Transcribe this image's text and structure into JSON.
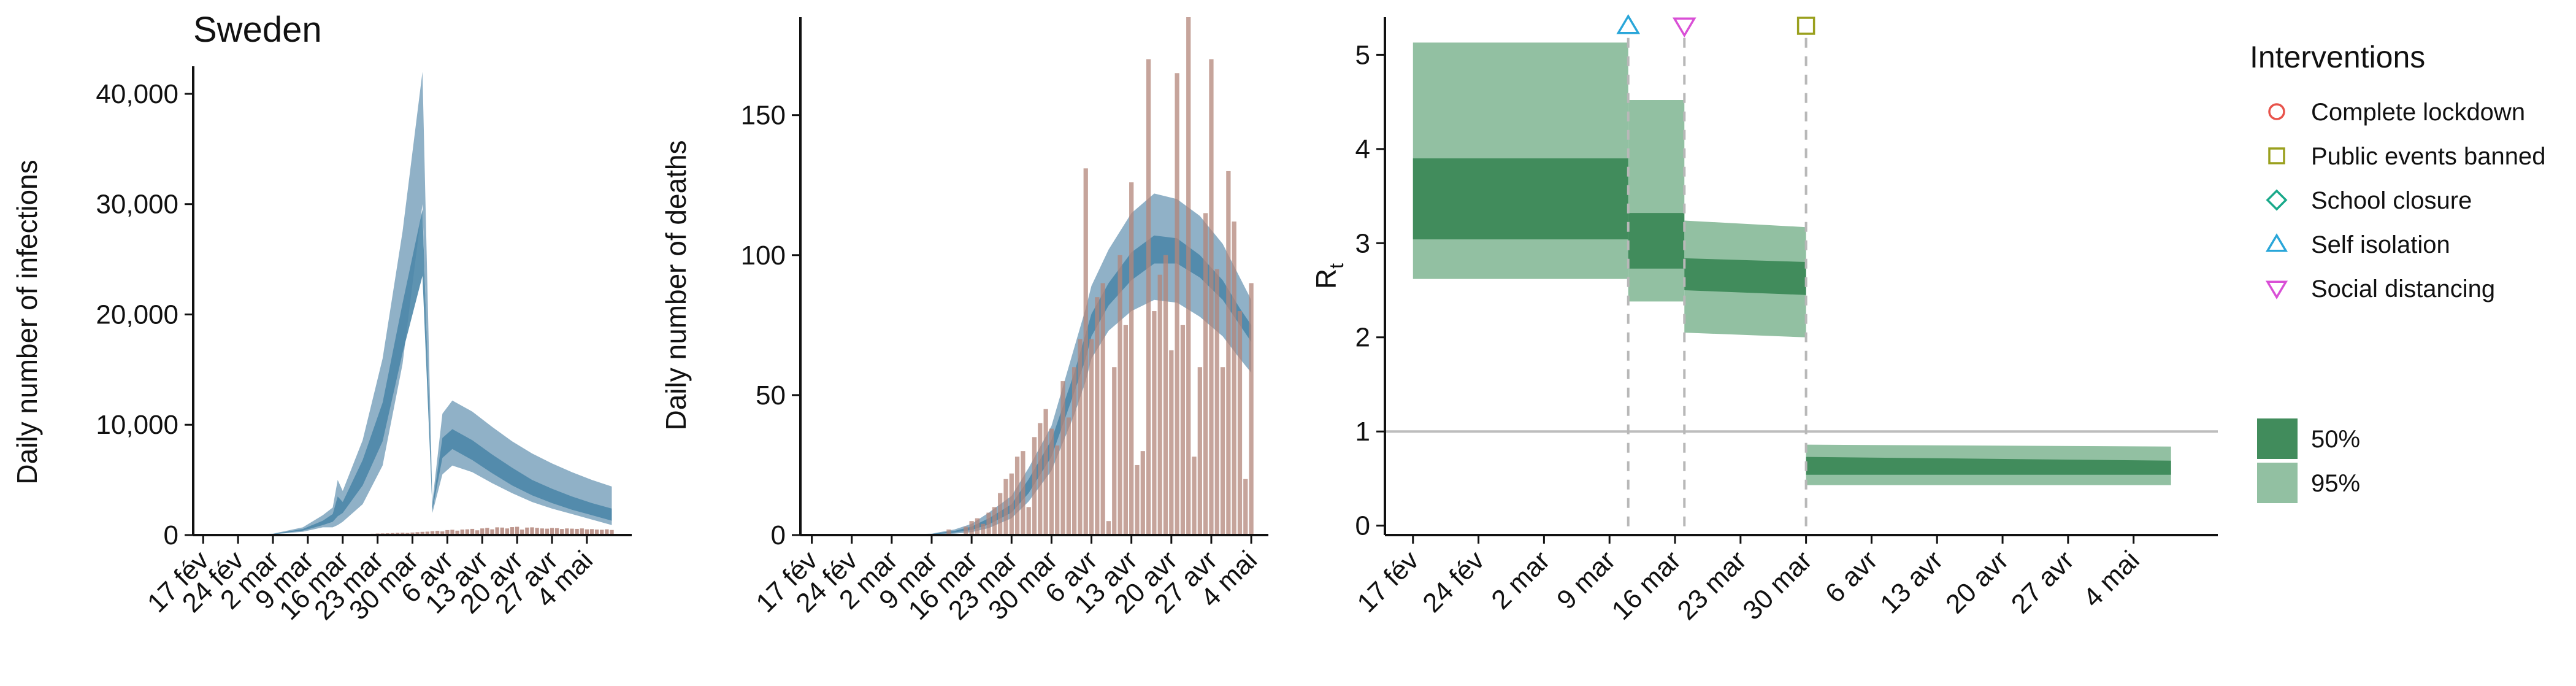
{
  "figure": {
    "colors": {
      "infections_band95": "#8aadc4",
      "infections_band50": "#4d87a8",
      "deaths_band95": "#8aadc4",
      "deaths_band50": "#4d87a8",
      "observed_bars": "#b3857a",
      "rt_band95": "#92c0a2",
      "rt_band50": "#418c5c",
      "marker_complete_lockdown": "#e8534b",
      "marker_public_events_banned": "#9aa01e",
      "marker_school_closure": "#19a98a",
      "marker_self_isolation": "#29a6d9",
      "marker_social_distancing": "#d94fd6"
    }
  },
  "chart_data": [
    {
      "type": "area",
      "title": "Sweden",
      "xlabel": "",
      "ylabel": "Daily number of infections",
      "x_ticks": [
        "17 fév",
        "24 fév",
        "2 mar",
        "9 mar",
        "16 mar",
        "23 mar",
        "30 mar",
        "6 avr",
        "13 avr",
        "20 avr",
        "27 avr",
        "4 mai"
      ],
      "y_ticks": [
        "0",
        "10,000",
        "20,000",
        "30,000",
        "40,000"
      ],
      "ylim": [
        0,
        42500
      ],
      "xlim_days": [
        -2,
        86
      ],
      "series": [
        {
          "name": "",
          "band": "95",
          "days": [
            0,
            7,
            14,
            20,
            24,
            26,
            27,
            28,
            32,
            36,
            40,
            44,
            46,
            48,
            50,
            54,
            58,
            62,
            66,
            70,
            74,
            78,
            82
          ],
          "lower": [
            0,
            10,
            60,
            300,
            700,
            700,
            900,
            1200,
            2800,
            6300,
            15500,
            30000,
            2000,
            5500,
            6300,
            5700,
            4700,
            3800,
            3000,
            2400,
            1900,
            1400,
            900
          ],
          "upper": [
            0,
            20,
            120,
            700,
            1800,
            2500,
            5000,
            4000,
            8600,
            16000,
            27500,
            42000,
            3000,
            11000,
            12200,
            11200,
            9800,
            8500,
            7400,
            6500,
            5700,
            5000,
            4400
          ]
        },
        {
          "name": "",
          "band": "50",
          "days": [
            0,
            7,
            14,
            20,
            24,
            26,
            27,
            28,
            32,
            36,
            40,
            44,
            46,
            48,
            50,
            54,
            58,
            62,
            66,
            70,
            74,
            78,
            82
          ],
          "lower": [
            0,
            12,
            80,
            400,
            900,
            1200,
            1700,
            2000,
            4500,
            8500,
            16500,
            23500,
            2300,
            7000,
            7800,
            6800,
            5600,
            4500,
            3600,
            2900,
            2300,
            1800,
            1300
          ],
          "upper": [
            0,
            16,
            100,
            550,
            1300,
            1900,
            3500,
            3000,
            6800,
            12000,
            21000,
            29500,
            2600,
            8800,
            9600,
            8600,
            7300,
            6100,
            5000,
            4200,
            3500,
            2900,
            2400
          ]
        },
        {
          "name": "",
          "type": "bar",
          "days": [
            18,
            21,
            24,
            26,
            28,
            30,
            32,
            34,
            35,
            36,
            37,
            38,
            39,
            40,
            41,
            42,
            43,
            44,
            45,
            46,
            47,
            48,
            49,
            50,
            51,
            52,
            53,
            54,
            55,
            56,
            57,
            58,
            59,
            60,
            61,
            62,
            63,
            64,
            65,
            66,
            67,
            68,
            69,
            70,
            71,
            72,
            73,
            74,
            75,
            76,
            77,
            78,
            79,
            80,
            81,
            82
          ],
          "values": [
            20,
            30,
            50,
            60,
            80,
            90,
            110,
            120,
            140,
            150,
            160,
            180,
            200,
            210,
            190,
            230,
            260,
            290,
            310,
            350,
            380,
            330,
            450,
            480,
            400,
            500,
            520,
            560,
            430,
            600,
            650,
            520,
            700,
            680,
            600,
            720,
            750,
            500,
            680,
            700,
            650,
            600,
            580,
            640,
            620,
            550,
            600,
            580,
            560,
            600,
            520,
            540,
            500,
            480,
            520,
            460
          ]
        }
      ]
    },
    {
      "type": "area",
      "title": "",
      "xlabel": "",
      "ylabel": "Daily number of deaths",
      "x_ticks": [
        "17 fév",
        "24 fév",
        "2 mar",
        "9 mar",
        "16 mar",
        "23 mar",
        "30 mar",
        "6 avr",
        "13 avr",
        "20 avr",
        "27 avr",
        "4 mai"
      ],
      "y_ticks": [
        "0",
        "50",
        "100",
        "150"
      ],
      "ylim": [
        0,
        185
      ],
      "xlim_days": [
        -2,
        80
      ],
      "series": [
        {
          "name": "",
          "band": "95",
          "days": [
            0,
            7,
            14,
            21,
            25,
            28,
            31,
            35,
            38,
            42,
            46,
            48,
            49,
            52,
            56,
            60,
            64,
            68,
            72,
            75,
            77
          ],
          "lower": [
            0,
            0,
            0,
            0.1,
            0.5,
            1,
            2.5,
            6,
            12,
            23,
            43,
            55,
            63,
            73,
            80,
            84,
            83,
            78,
            71,
            63,
            58
          ],
          "upper": [
            0,
            0,
            0.1,
            0.5,
            2,
            4,
            8,
            14,
            24,
            39,
            67,
            81,
            89,
            102,
            115,
            122,
            120,
            114,
            104,
            92,
            84
          ]
        },
        {
          "name": "",
          "band": "50",
          "days": [
            0,
            7,
            14,
            21,
            25,
            28,
            31,
            35,
            38,
            42,
            46,
            48,
            49,
            52,
            56,
            60,
            64,
            68,
            72,
            75,
            77
          ],
          "lower": [
            0,
            0,
            0,
            0.2,
            0.9,
            1.8,
            3.8,
            8,
            15,
            28,
            51,
            63,
            71,
            82,
            91,
            97,
            97,
            92,
            84,
            75,
            69
          ],
          "upper": [
            0,
            0,
            0,
            0.4,
            1.5,
            3,
            6,
            11,
            20,
            34,
            58,
            72,
            79,
            90,
            101,
            107,
            106,
            100,
            91,
            81,
            75
          ]
        },
        {
          "name": "",
          "type": "bar",
          "days": [
            24,
            27,
            28,
            29,
            30,
            31,
            32,
            33,
            34,
            35,
            36,
            37,
            38,
            39,
            40,
            41,
            42,
            43,
            44,
            45,
            46,
            47,
            48,
            49,
            50,
            51,
            52,
            53,
            54,
            55,
            56,
            57,
            58,
            59,
            60,
            61,
            62,
            63,
            64,
            65,
            66,
            67,
            68,
            69,
            70,
            71,
            72,
            73,
            74,
            75,
            76,
            77
          ],
          "values": [
            2,
            3,
            5,
            6,
            4,
            8,
            10,
            15,
            20,
            22,
            28,
            30,
            10,
            35,
            40,
            45,
            38,
            32,
            55,
            42,
            60,
            70,
            131,
            70,
            85,
            90,
            5,
            60,
            100,
            75,
            126,
            25,
            30,
            170,
            80,
            93,
            100,
            66,
            165,
            75,
            185,
            28,
            60,
            115,
            170,
            95,
            60,
            130,
            112,
            80,
            20,
            90
          ]
        }
      ]
    },
    {
      "type": "area",
      "title": "",
      "xlabel": "",
      "ylabel": "R",
      "ylabel_subscript": "t",
      "x_ticks": [
        "17 fév",
        "24 fév",
        "2 mar",
        "9 mar",
        "16 mar",
        "23 mar",
        "30 mar",
        "6 avr",
        "13 avr",
        "20 avr",
        "27 avr",
        "4 mai"
      ],
      "y_ticks": [
        "0",
        "1",
        "2",
        "3",
        "4",
        "5"
      ],
      "ylim": [
        -0.1,
        5.4
      ],
      "xlim_days": [
        -3,
        86
      ],
      "reference_line": 1,
      "intervention_days": [
        23,
        29,
        42
      ],
      "series": [
        {
          "name": "",
          "band": "95",
          "start": 0,
          "end": 23,
          "lower_start": 2.62,
          "lower_end": 2.62,
          "upper_start": 5.13,
          "upper_end": 5.13
        },
        {
          "name": "",
          "band": "50",
          "start": 0,
          "end": 23,
          "lower_start": 3.04,
          "lower_end": 3.04,
          "upper_start": 3.9,
          "upper_end": 3.9
        },
        {
          "name": "",
          "band": "95",
          "start": 23,
          "end": 29,
          "lower_start": 2.38,
          "lower_end": 2.38,
          "upper_start": 4.52,
          "upper_end": 4.52
        },
        {
          "name": "",
          "band": "50",
          "start": 23,
          "end": 29,
          "lower_start": 2.73,
          "lower_end": 2.73,
          "upper_start": 3.32,
          "upper_end": 3.32
        },
        {
          "name": "",
          "band": "95",
          "start": 29,
          "end": 42,
          "lower_start": 2.05,
          "lower_end": 2.0,
          "upper_start": 3.24,
          "upper_end": 3.17
        },
        {
          "name": "",
          "band": "50",
          "start": 29,
          "end": 42,
          "lower_start": 2.5,
          "lower_end": 2.45,
          "upper_start": 2.84,
          "upper_end": 2.8
        },
        {
          "name": "",
          "band": "95",
          "start": 42,
          "end": 81,
          "lower_start": 0.43,
          "lower_end": 0.43,
          "upper_start": 0.86,
          "upper_end": 0.84
        },
        {
          "name": "",
          "band": "50",
          "start": 42,
          "end": 81,
          "lower_start": 0.54,
          "lower_end": 0.54,
          "upper_start": 0.73,
          "upper_end": 0.69
        }
      ],
      "markers": [
        {
          "intervention": "self_isolation",
          "day": 23,
          "shape": "triangle-up"
        },
        {
          "intervention": "social_distancing",
          "day": 29,
          "shape": "triangle-down"
        },
        {
          "intervention": "public_events_banned",
          "day": 42,
          "shape": "square"
        }
      ]
    }
  ],
  "legend": {
    "title": "Interventions",
    "placement": "right",
    "items": [
      {
        "label": "Complete lockdown",
        "shape": "circle",
        "color_key": "marker_complete_lockdown"
      },
      {
        "label": "Public events banned",
        "shape": "square",
        "color_key": "marker_public_events_banned"
      },
      {
        "label": "School closure",
        "shape": "diamond",
        "color_key": "marker_school_closure"
      },
      {
        "label": "Self isolation",
        "shape": "triangle-up",
        "color_key": "marker_self_isolation"
      },
      {
        "label": "Social distancing",
        "shape": "triangle-down",
        "color_key": "marker_social_distancing"
      }
    ],
    "bands": [
      {
        "label": "50%",
        "color_key": "rt_band50"
      },
      {
        "label": "95%",
        "color_key": "rt_band95"
      }
    ]
  }
}
